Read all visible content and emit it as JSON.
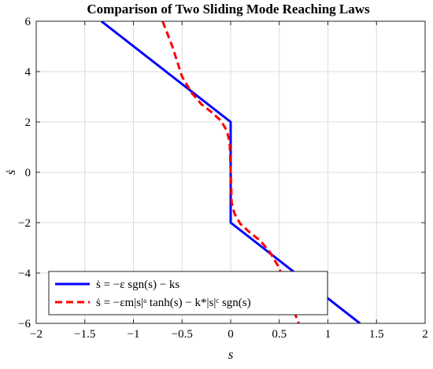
{
  "chart_data": {
    "type": "line",
    "title": "Comparison of Two Sliding Mode Reaching Laws",
    "xlabel": "s",
    "ylabel": "ṡ",
    "xlim": [
      -2,
      2
    ],
    "ylim": [
      -6,
      6
    ],
    "xticks": [
      -2,
      -1.5,
      -1,
      -0.5,
      0,
      0.5,
      1,
      1.5,
      2
    ],
    "xtick_labels": [
      "−2",
      "−1.5",
      "−1",
      "−0.5",
      "0",
      "0.5",
      "1",
      "1.5",
      "2"
    ],
    "yticks": [
      -6,
      -4,
      -2,
      0,
      2,
      4,
      6
    ],
    "ytick_labels": [
      "−6",
      "−4",
      "−2",
      "0",
      "2",
      "4",
      "6"
    ],
    "grid": true,
    "legend_position": "bottom-left",
    "series": [
      {
        "name": "ṡ = −ε sgn(s) − ks",
        "color": "#0000ff",
        "style": "solid",
        "points": [
          [
            -1.33,
            6
          ],
          [
            0,
            2
          ],
          [
            0,
            -2
          ],
          [
            1.33,
            -6
          ]
        ]
      },
      {
        "name": "ṡ = −εm|s|ᵃ tanh(s) − k*|s|ᶜ sgn(s)",
        "color": "#ff0000",
        "style": "dashed",
        "points": [
          [
            -0.7,
            6
          ],
          [
            -0.6,
            5.0
          ],
          [
            -0.5,
            3.8
          ],
          [
            -0.4,
            3.15
          ],
          [
            -0.3,
            2.7
          ],
          [
            -0.2,
            2.4
          ],
          [
            -0.1,
            2.05
          ],
          [
            -0.04,
            1.65
          ],
          [
            -0.01,
            1.2
          ],
          [
            0,
            0
          ],
          [
            0.01,
            -1.2
          ],
          [
            0.04,
            -1.65
          ],
          [
            0.1,
            -2.05
          ],
          [
            0.2,
            -2.4
          ],
          [
            0.3,
            -2.7
          ],
          [
            0.4,
            -3.15
          ],
          [
            0.5,
            -3.8
          ],
          [
            0.6,
            -5.0
          ],
          [
            0.7,
            -6
          ]
        ]
      }
    ]
  }
}
